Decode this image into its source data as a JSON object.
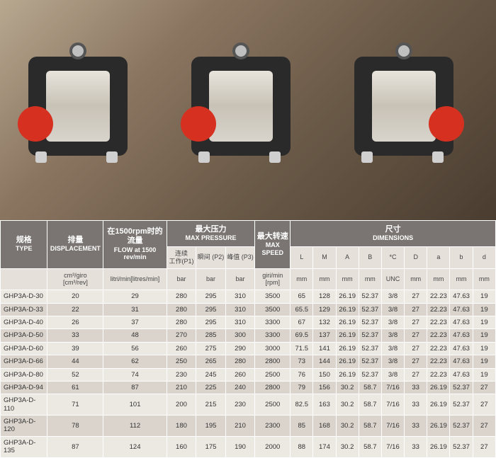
{
  "photo": {
    "pump_count": 3
  },
  "headers": {
    "type": {
      "cn": "规格",
      "en": "TYPE"
    },
    "disp": {
      "cn": "排量",
      "en": "DISPLACEMENT"
    },
    "flow": {
      "cn": "在1500rpm时的流量",
      "en": "FLOW at 1500 rev/min"
    },
    "press": {
      "cn": "最大压力",
      "en": "MAX PRESSURE"
    },
    "speed": {
      "cn": "最大转速",
      "en": "MAX SPEED"
    },
    "dims": {
      "cn": "尺寸",
      "en": "DIMENSIONS"
    }
  },
  "sub": {
    "p1": "连续\n工作(P1)",
    "p2": "瞬间 (P2)",
    "p3": "峰值 (P3)",
    "dim_labels": [
      "L",
      "M",
      "A",
      "B",
      "*C",
      "D",
      "a",
      "b",
      "d"
    ]
  },
  "units": {
    "disp": "cm³/giro\n[cm³/rev]",
    "flow": "litri/min[litres/min]",
    "p": "bar",
    "speed": "giri/min\n[rpm]",
    "dim_units": [
      "mm",
      "mm",
      "mm",
      "mm",
      "UNC",
      "mm",
      "mm",
      "mm",
      "mm"
    ]
  },
  "rows": [
    {
      "type": "GHP3A-D-30",
      "disp": "20",
      "flow": "29",
      "p1": "280",
      "p2": "295",
      "p3": "310",
      "spd": "3500",
      "L": "65",
      "M": "128",
      "A": "26.19",
      "B": "52.37",
      "C": "3/8",
      "D": "27",
      "a": "22.23",
      "b": "47.63",
      "d": "19"
    },
    {
      "type": "GHP3A-D-33",
      "disp": "22",
      "flow": "31",
      "p1": "280",
      "p2": "295",
      "p3": "310",
      "spd": "3500",
      "L": "65.5",
      "M": "129",
      "A": "26.19",
      "B": "52.37",
      "C": "3/8",
      "D": "27",
      "a": "22.23",
      "b": "47.63",
      "d": "19"
    },
    {
      "type": "GHP3A-D-40",
      "disp": "26",
      "flow": "37",
      "p1": "280",
      "p2": "295",
      "p3": "310",
      "spd": "3300",
      "L": "67",
      "M": "132",
      "A": "26.19",
      "B": "52.37",
      "C": "3/8",
      "D": "27",
      "a": "22.23",
      "b": "47.63",
      "d": "19"
    },
    {
      "type": "GHP3A-D-50",
      "disp": "33",
      "flow": "48",
      "p1": "270",
      "p2": "285",
      "p3": "300",
      "spd": "3300",
      "L": "69.5",
      "M": "137",
      "A": "26.19",
      "B": "52.37",
      "C": "3/8",
      "D": "27",
      "a": "22.23",
      "b": "47.63",
      "d": "19"
    },
    {
      "type": "GHP3A-D-60",
      "disp": "39",
      "flow": "56",
      "p1": "260",
      "p2": "275",
      "p3": "290",
      "spd": "3000",
      "L": "71.5",
      "M": "141",
      "A": "26.19",
      "B": "52.37",
      "C": "3/8",
      "D": "27",
      "a": "22.23",
      "b": "47.63",
      "d": "19"
    },
    {
      "type": "GHP3A-D-66",
      "disp": "44",
      "flow": "62",
      "p1": "250",
      "p2": "265",
      "p3": "280",
      "spd": "2800",
      "L": "73",
      "M": "144",
      "A": "26.19",
      "B": "52.37",
      "C": "3/8",
      "D": "27",
      "a": "22.23",
      "b": "47.63",
      "d": "19"
    },
    {
      "type": "GHP3A-D-80",
      "disp": "52",
      "flow": "74",
      "p1": "230",
      "p2": "245",
      "p3": "260",
      "spd": "2500",
      "L": "76",
      "M": "150",
      "A": "26.19",
      "B": "52.37",
      "C": "3/8",
      "D": "27",
      "a": "22.23",
      "b": "47.63",
      "d": "19"
    },
    {
      "type": "GHP3A-D-94",
      "disp": "61",
      "flow": "87",
      "p1": "210",
      "p2": "225",
      "p3": "240",
      "spd": "2800",
      "L": "79",
      "M": "156",
      "A": "30.2",
      "B": "58.7",
      "C": "7/16",
      "D": "33",
      "a": "26.19",
      "b": "52.37",
      "d": "27"
    },
    {
      "type": "GHP3A-D-110",
      "disp": "71",
      "flow": "101",
      "p1": "200",
      "p2": "215",
      "p3": "230",
      "spd": "2500",
      "L": "82.5",
      "M": "163",
      "A": "30.2",
      "B": "58.7",
      "C": "7/16",
      "D": "33",
      "a": "26.19",
      "b": "52.37",
      "d": "27"
    },
    {
      "type": "GHP3A-D-120",
      "disp": "78",
      "flow": "112",
      "p1": "180",
      "p2": "195",
      "p3": "210",
      "spd": "2300",
      "L": "85",
      "M": "168",
      "A": "30.2",
      "B": "58.7",
      "C": "7/16",
      "D": "33",
      "a": "26.19",
      "b": "52.37",
      "d": "27"
    },
    {
      "type": "GHP3A-D-135",
      "disp": "87",
      "flow": "124",
      "p1": "160",
      "p2": "175",
      "p3": "190",
      "spd": "2000",
      "L": "88",
      "M": "174",
      "A": "30.2",
      "B": "58.7",
      "C": "7/16",
      "D": "33",
      "a": "26.19",
      "b": "52.37",
      "d": "27"
    }
  ],
  "colors": {
    "header_bg": "#7a7572",
    "header_fg": "#ffffff",
    "sub_bg": "#e5e0da",
    "row_odd": "#ece8e2",
    "row_even": "#dad4cc",
    "border": "#ffffff"
  }
}
